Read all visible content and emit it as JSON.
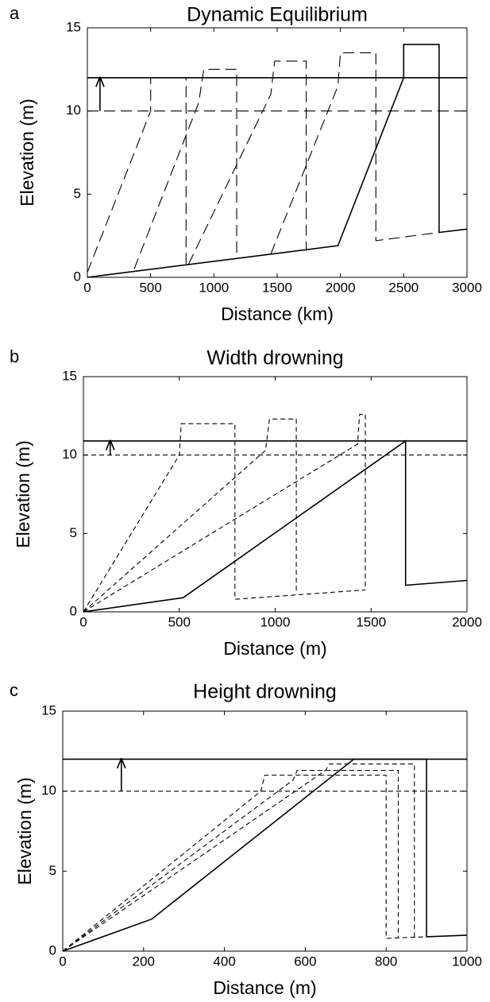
{
  "chart_data": [
    {
      "type": "line",
      "panel": "a",
      "title": "Dynamic Equilibrium",
      "xlabel": "Distance (km)",
      "ylabel": "Elevation (m)",
      "xlim": [
        0,
        3000
      ],
      "ylim": [
        0,
        15
      ],
      "xticks": [
        0,
        500,
        1000,
        1500,
        2000,
        2500,
        3000
      ],
      "yticks": [
        0,
        5,
        10,
        15
      ],
      "series": [
        {
          "color": "#000000",
          "dash": "solid",
          "x": [
            0,
            3000
          ],
          "values": [
            12,
            12
          ]
        },
        {
          "color": "#000000",
          "dash": "long",
          "x": [
            0,
            3000
          ],
          "values": [
            10,
            10
          ]
        },
        {
          "color": "#000000",
          "dash": "solid",
          "arrow": true,
          "x": [
            100,
            100
          ],
          "values": [
            10,
            12
          ]
        },
        {
          "color": "#000000",
          "dash": "solid",
          "x": [
            0,
            1980,
            2500,
            2500,
            2780,
            2780,
            3000
          ],
          "values": [
            0,
            1.9,
            12,
            14,
            14,
            2.7,
            2.9
          ]
        },
        {
          "color": "#000000",
          "dash": "long",
          "x": [
            0,
            500,
            500,
            780,
            780
          ],
          "values": [
            0.3,
            10,
            12,
            12,
            0.8
          ]
        },
        {
          "color": "#000000",
          "dash": "long",
          "x": [
            370,
            880,
            920,
            1180,
            1180
          ],
          "values": [
            0.5,
            10.5,
            12.5,
            12.5,
            1.1
          ]
        },
        {
          "color": "#000000",
          "dash": "long",
          "x": [
            800,
            1450,
            1480,
            1730,
            1730
          ],
          "values": [
            0.8,
            11,
            13,
            13,
            1.6
          ]
        },
        {
          "color": "#000000",
          "dash": "long",
          "x": [
            1450,
            1980,
            2000,
            2280,
            2280,
            2780
          ],
          "values": [
            1.4,
            11.5,
            13.5,
            13.5,
            2.2,
            2.7
          ]
        }
      ]
    },
    {
      "type": "line",
      "panel": "b",
      "title": "Width drowning",
      "xlabel": "Distance (m)",
      "ylabel": "Elevation (m)",
      "xlim": [
        0,
        2000
      ],
      "ylim": [
        0,
        15
      ],
      "xticks": [
        0,
        500,
        1000,
        1500,
        2000
      ],
      "yticks": [
        0,
        5,
        10,
        15
      ],
      "series": [
        {
          "color": "#000000",
          "dash": "solid",
          "x": [
            0,
            2000
          ],
          "values": [
            10.9,
            10.9
          ]
        },
        {
          "color": "#000000",
          "dash": "short",
          "x": [
            0,
            2000
          ],
          "values": [
            10,
            10
          ]
        },
        {
          "color": "#000000",
          "dash": "solid",
          "arrow": true,
          "x": [
            140,
            140
          ],
          "values": [
            10,
            10.9
          ]
        },
        {
          "color": "#000000",
          "dash": "solid",
          "x": [
            0,
            520,
            1680,
            1680,
            2000
          ],
          "values": [
            0,
            0.9,
            10.9,
            1.7,
            2.0
          ]
        },
        {
          "color": "#000000",
          "dash": "short",
          "x": [
            0,
            500,
            510,
            790,
            790,
            1470
          ],
          "values": [
            0,
            10,
            12,
            12,
            0.8,
            1.4
          ]
        },
        {
          "color": "#000000",
          "dash": "short",
          "x": [
            0,
            950,
            970,
            1110,
            1110
          ],
          "values": [
            0,
            10.3,
            12.3,
            12.3,
            1.2
          ]
        },
        {
          "color": "#000000",
          "dash": "short",
          "x": [
            0,
            1430,
            1440,
            1470,
            1470
          ],
          "values": [
            0,
            10.7,
            12.6,
            12.6,
            1.4
          ]
        }
      ]
    },
    {
      "type": "line",
      "panel": "c",
      "title": "Height drowning",
      "xlabel": "Distance (m)",
      "ylabel": "Elevation (m)",
      "xlim": [
        0,
        1000
      ],
      "ylim": [
        0,
        15
      ],
      "xticks": [
        0,
        200,
        400,
        600,
        800,
        1000
      ],
      "yticks": [
        0,
        5,
        10,
        15
      ],
      "series": [
        {
          "color": "#000000",
          "dash": "solid",
          "x": [
            0,
            1000
          ],
          "values": [
            12,
            12
          ]
        },
        {
          "color": "#000000",
          "dash": "short",
          "x": [
            0,
            1000
          ],
          "values": [
            10,
            10
          ]
        },
        {
          "color": "#000000",
          "dash": "solid",
          "arrow": true,
          "x": [
            145,
            145
          ],
          "values": [
            10,
            12
          ]
        },
        {
          "color": "#000000",
          "dash": "solid",
          "x": [
            0,
            220,
            720,
            900,
            900,
            1000
          ],
          "values": [
            0,
            2,
            12,
            12,
            0.9,
            1.0
          ]
        },
        {
          "color": "#000000",
          "dash": "short",
          "x": [
            0,
            490,
            500,
            800,
            800,
            900
          ],
          "values": [
            0,
            10,
            11,
            11,
            0.8,
            0.9
          ]
        },
        {
          "color": "#000000",
          "dash": "short",
          "x": [
            0,
            570,
            580,
            830,
            830
          ],
          "values": [
            0,
            10.7,
            11.3,
            11.3,
            0.8
          ]
        },
        {
          "color": "#000000",
          "dash": "short",
          "x": [
            0,
            650,
            660,
            870,
            870
          ],
          "values": [
            0,
            11.3,
            11.7,
            11.7,
            0.8
          ]
        }
      ]
    }
  ]
}
